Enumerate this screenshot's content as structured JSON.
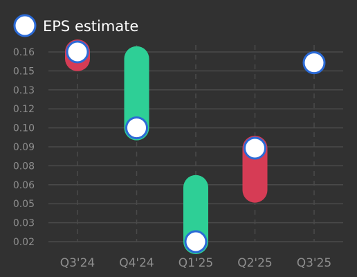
{
  "chart_data": {
    "type": "scatter",
    "legend": {
      "label": "EPS estimate",
      "placement": "top-left"
    },
    "categories": [
      "Q3'24",
      "Q4'24",
      "Q1'25",
      "Q2'25",
      "Q3'25"
    ],
    "estimate": [
      0.16,
      0.104,
      0.02,
      0.089,
      0.152
    ],
    "actual": [
      0.155,
      0.155,
      0.06,
      0.058,
      null
    ],
    "y_ticks": [
      "0.02",
      "0.03",
      "0.05",
      "0.06",
      "0.08",
      "0.09",
      "0.10",
      "0.12",
      "0.13",
      "0.15",
      "0.16"
    ],
    "ylim": [
      0.02,
      0.16
    ],
    "grid": true,
    "colors": {
      "background": "#313131",
      "beat": "#2ecf96",
      "miss": "#d63c55",
      "marker_fill": "#ffffff",
      "marker_stroke": "#2b6ad6",
      "grid": "#4a4a4a",
      "tick_text": "#8e8e8e"
    }
  }
}
